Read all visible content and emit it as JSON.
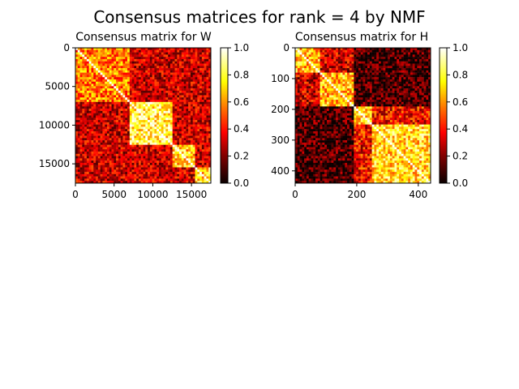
{
  "suptitle": "Consensus matrices for rank = 4 by NMF",
  "chart_data": [
    {
      "type": "heatmap",
      "title": "Consensus matrix for W",
      "colormap": "hot",
      "n": 17500,
      "xlim": [
        0,
        17500
      ],
      "ylim": [
        17500,
        0
      ],
      "xticks": [
        0,
        5000,
        10000,
        15000
      ],
      "xtick_labels": [
        "0",
        "5000",
        "10000",
        "15000"
      ],
      "yticks": [
        0,
        5000,
        10000,
        15000
      ],
      "ytick_labels": [
        "0",
        "5000",
        "10000",
        "15000"
      ],
      "blocks": [
        [
          0,
          7000
        ],
        [
          7000,
          12500
        ],
        [
          12500,
          15500
        ],
        [
          15500,
          17500
        ]
      ],
      "block_levels": [
        0.55,
        0.78,
        0.7,
        0.72
      ],
      "off_block_level": 0.25,
      "colorbar": {
        "min": 0.0,
        "max": 1.0,
        "ticks": [
          0.0,
          0.2,
          0.4,
          0.6,
          0.8,
          1.0
        ],
        "tick_labels": [
          "0.0",
          "0.2",
          "0.4",
          "0.6",
          "0.8",
          "1.0"
        ]
      }
    },
    {
      "type": "heatmap",
      "title": "Consensus matrix for H",
      "colormap": "hot",
      "n": 440,
      "xlim": [
        0,
        440
      ],
      "ylim": [
        440,
        0
      ],
      "xticks": [
        0,
        200,
        400
      ],
      "xtick_labels": [
        "0",
        "200",
        "400"
      ],
      "yticks": [
        0,
        100,
        200,
        300,
        400
      ],
      "ytick_labels": [
        "0",
        "100",
        "200",
        "300",
        "400"
      ],
      "blocks": [
        [
          0,
          190
        ],
        [
          190,
          440
        ]
      ],
      "sub_blocks": [
        [
          0,
          80
        ],
        [
          80,
          190
        ],
        [
          190,
          250
        ],
        [
          250,
          440
        ]
      ],
      "block_levels": [
        0.65,
        0.72
      ],
      "off_block_level": 0.05,
      "colorbar": {
        "min": 0.0,
        "max": 1.0,
        "ticks": [
          0.0,
          0.2,
          0.4,
          0.6,
          0.8,
          1.0
        ],
        "tick_labels": [
          "0.0",
          "0.2",
          "0.4",
          "0.6",
          "0.8",
          "1.0"
        ]
      }
    }
  ]
}
